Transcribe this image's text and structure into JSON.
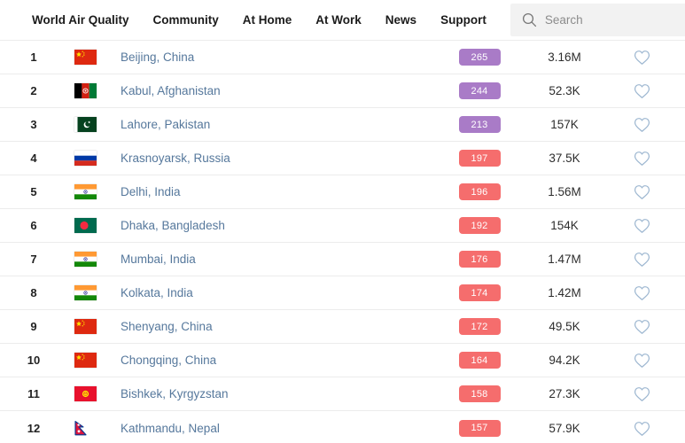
{
  "nav": {
    "items": [
      {
        "label": "World Air Quality"
      },
      {
        "label": "Community"
      },
      {
        "label": "At Home"
      },
      {
        "label": "At Work"
      },
      {
        "label": "News"
      },
      {
        "label": "Support"
      }
    ]
  },
  "search": {
    "placeholder": "Search"
  },
  "colors": {
    "badge_purple": "#a97bc7",
    "badge_red": "#f56d6d",
    "city_link": "#56789c",
    "heart_outline": "#9cb6d0",
    "search_bg": "#f2f2f2",
    "row_divider": "#ececec"
  },
  "table": {
    "rows": [
      {
        "rank": "1",
        "flag": "china",
        "city": "Beijing, China",
        "aqi": "265",
        "badge_color": "purple",
        "followers": "3.16M"
      },
      {
        "rank": "2",
        "flag": "afghanistan",
        "city": "Kabul, Afghanistan",
        "aqi": "244",
        "badge_color": "purple",
        "followers": "52.3K"
      },
      {
        "rank": "3",
        "flag": "pakistan",
        "city": "Lahore, Pakistan",
        "aqi": "213",
        "badge_color": "purple",
        "followers": "157K"
      },
      {
        "rank": "4",
        "flag": "russia",
        "city": "Krasnoyarsk, Russia",
        "aqi": "197",
        "badge_color": "red",
        "followers": "37.5K"
      },
      {
        "rank": "5",
        "flag": "india",
        "city": "Delhi, India",
        "aqi": "196",
        "badge_color": "red",
        "followers": "1.56M"
      },
      {
        "rank": "6",
        "flag": "bangladesh",
        "city": "Dhaka, Bangladesh",
        "aqi": "192",
        "badge_color": "red",
        "followers": "154K"
      },
      {
        "rank": "7",
        "flag": "india",
        "city": "Mumbai, India",
        "aqi": "176",
        "badge_color": "red",
        "followers": "1.47M"
      },
      {
        "rank": "8",
        "flag": "india",
        "city": "Kolkata, India",
        "aqi": "174",
        "badge_color": "red",
        "followers": "1.42M"
      },
      {
        "rank": "9",
        "flag": "china",
        "city": "Shenyang, China",
        "aqi": "172",
        "badge_color": "red",
        "followers": "49.5K"
      },
      {
        "rank": "10",
        "flag": "china",
        "city": "Chongqing, China",
        "aqi": "164",
        "badge_color": "red",
        "followers": "94.2K"
      },
      {
        "rank": "11",
        "flag": "kyrgyzstan",
        "city": "Bishkek, Kyrgyzstan",
        "aqi": "158",
        "badge_color": "red",
        "followers": "27.3K"
      },
      {
        "rank": "12",
        "flag": "nepal",
        "city": "Kathmandu, Nepal",
        "aqi": "157",
        "badge_color": "red",
        "followers": "57.9K"
      }
    ]
  }
}
